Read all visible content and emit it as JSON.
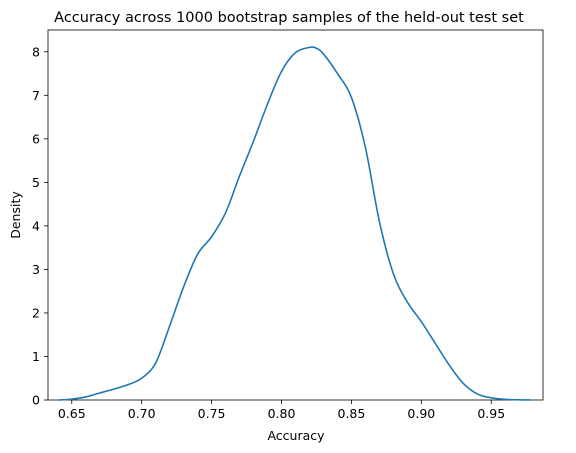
{
  "chart_data": {
    "type": "line",
    "title": "Accuracy across 1000 bootstrap samples of the held-out test set",
    "xlabel": "Accuracy",
    "ylabel": "Density",
    "xlim": [
      0.633,
      0.987
    ],
    "ylim": [
      0,
      8.5
    ],
    "xticks": [
      0.65,
      0.7,
      0.75,
      0.8,
      0.85,
      0.9,
      0.95
    ],
    "xtick_labels": [
      "0.65",
      "0.70",
      "0.75",
      "0.80",
      "0.85",
      "0.90",
      "0.95"
    ],
    "yticks": [
      0,
      1,
      2,
      3,
      4,
      5,
      6,
      7,
      8
    ],
    "ytick_labels": [
      "0",
      "1",
      "2",
      "3",
      "4",
      "5",
      "6",
      "7",
      "8"
    ],
    "grid": false,
    "legend": "none",
    "series": [
      {
        "color": "#1f77b4",
        "x": [
          0.641,
          0.65,
          0.66,
          0.67,
          0.68,
          0.69,
          0.7,
          0.71,
          0.72,
          0.73,
          0.74,
          0.75,
          0.76,
          0.77,
          0.78,
          0.79,
          0.8,
          0.81,
          0.82,
          0.825,
          0.83,
          0.84,
          0.85,
          0.86,
          0.87,
          0.88,
          0.89,
          0.9,
          0.91,
          0.92,
          0.93,
          0.94,
          0.95,
          0.96,
          0.97,
          0.978
        ],
        "y": [
          0.0,
          0.02,
          0.07,
          0.16,
          0.25,
          0.35,
          0.5,
          0.85,
          1.7,
          2.6,
          3.35,
          3.75,
          4.3,
          5.15,
          5.95,
          6.8,
          7.55,
          7.98,
          8.1,
          8.08,
          7.95,
          7.5,
          6.95,
          5.8,
          4.1,
          2.9,
          2.25,
          1.8,
          1.3,
          0.8,
          0.38,
          0.14,
          0.05,
          0.015,
          0.004,
          0.0
        ]
      }
    ]
  }
}
